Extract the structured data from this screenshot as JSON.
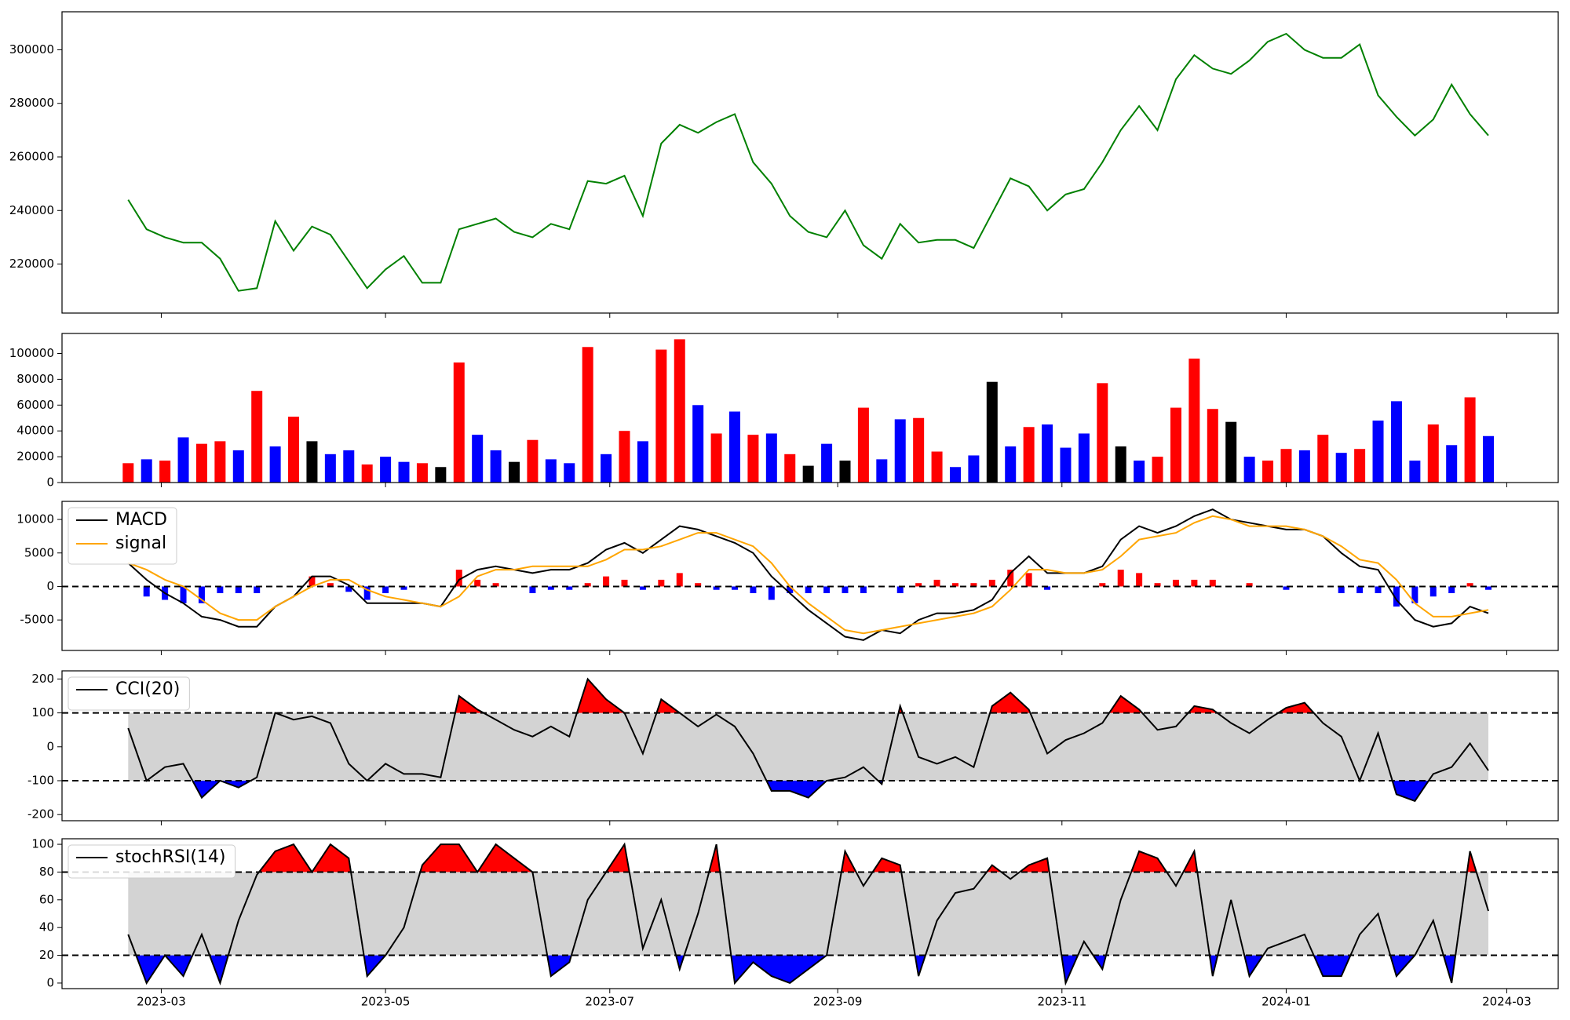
{
  "chart_data": {
    "type": "panels",
    "x": [
      "2023-02-20",
      "2023-02-25",
      "2023-03-02",
      "2023-03-07",
      "2023-03-12",
      "2023-03-17",
      "2023-03-22",
      "2023-03-27",
      "2023-04-01",
      "2023-04-06",
      "2023-04-11",
      "2023-04-16",
      "2023-04-21",
      "2023-04-26",
      "2023-05-01",
      "2023-05-06",
      "2023-05-11",
      "2023-05-16",
      "2023-05-21",
      "2023-05-26",
      "2023-05-31",
      "2023-06-05",
      "2023-06-10",
      "2023-06-15",
      "2023-06-20",
      "2023-06-25",
      "2023-06-30",
      "2023-07-05",
      "2023-07-10",
      "2023-07-15",
      "2023-07-20",
      "2023-07-25",
      "2023-07-30",
      "2023-08-04",
      "2023-08-09",
      "2023-08-14",
      "2023-08-19",
      "2023-08-24",
      "2023-08-29",
      "2023-09-03",
      "2023-09-08",
      "2023-09-13",
      "2023-09-18",
      "2023-09-23",
      "2023-09-28",
      "2023-10-03",
      "2023-10-08",
      "2023-10-13",
      "2023-10-18",
      "2023-10-23",
      "2023-10-28",
      "2023-11-02",
      "2023-11-07",
      "2023-11-12",
      "2023-11-17",
      "2023-11-22",
      "2023-11-27",
      "2023-12-02",
      "2023-12-07",
      "2023-12-12",
      "2023-12-17",
      "2023-12-22",
      "2023-12-27",
      "2024-01-01",
      "2024-01-06",
      "2024-01-11",
      "2024-01-16",
      "2024-01-21",
      "2024-01-26",
      "2024-01-31",
      "2024-02-05",
      "2024-02-10",
      "2024-02-15",
      "2024-02-20",
      "2024-02-25"
    ],
    "xlim": [
      "2023-02-02",
      "2024-03-15"
    ],
    "xticks": [
      {
        "value": "2023-03-01",
        "label": "2023-03"
      },
      {
        "value": "2023-05-01",
        "label": "2023-05"
      },
      {
        "value": "2023-07-01",
        "label": "2023-07"
      },
      {
        "value": "2023-09-01",
        "label": "2023-09"
      },
      {
        "value": "2023-11-01",
        "label": "2023-11"
      },
      {
        "value": "2024-01-01",
        "label": "2024-01"
      },
      {
        "value": "2024-03-01",
        "label": "2024-03"
      }
    ],
    "panels": [
      {
        "type": "line",
        "ylim": [
          201700,
          314200
        ],
        "yticks": [
          220000,
          240000,
          260000,
          280000,
          300000
        ],
        "series": [
          {
            "color": "green",
            "values": [
              244000,
              233000,
              230000,
              228000,
              228000,
              222000,
              210000,
              211000,
              236000,
              225000,
              234000,
              231000,
              221000,
              211000,
              218000,
              223000,
              213000,
              213000,
              233000,
              235000,
              237000,
              232000,
              230000,
              235000,
              233000,
              251000,
              250000,
              253000,
              238000,
              265000,
              272000,
              269000,
              273000,
              276000,
              258000,
              250000,
              238000,
              232000,
              230000,
              240000,
              227000,
              222000,
              235000,
              228000,
              229000,
              229000,
              226000,
              239000,
              252000,
              249000,
              240000,
              246000,
              248000,
              258000,
              270000,
              279000,
              270000,
              289000,
              298000,
              293000,
              291000,
              296000,
              303000,
              306000,
              300000,
              297000,
              297000,
              302000,
              283000,
              275000,
              268000,
              274000,
              287000,
              276000,
              268000
            ]
          }
        ]
      },
      {
        "type": "bar",
        "ylim": [
          0,
          115500
        ],
        "yticks": [
          0,
          20000,
          40000,
          60000,
          80000,
          100000
        ],
        "values": [
          15000,
          18000,
          17000,
          35000,
          30000,
          32000,
          25000,
          71000,
          28000,
          51000,
          32000,
          22000,
          25000,
          14000,
          20000,
          16000,
          15000,
          12000,
          93000,
          37000,
          25000,
          16000,
          33000,
          18000,
          15000,
          105000,
          22000,
          40000,
          32000,
          103000,
          111000,
          60000,
          38000,
          55000,
          37000,
          38000,
          22000,
          13000,
          30000,
          17000,
          58000,
          18000,
          49000,
          50000,
          24000,
          12000,
          21000,
          78000,
          28000,
          43000,
          45000,
          27000,
          38000,
          77000,
          28000,
          17000,
          20000,
          58000,
          96000,
          57000,
          47000,
          20000,
          17000,
          26000,
          25000,
          37000,
          23000,
          26000,
          48000,
          63000,
          17000,
          45000,
          29000,
          66000,
          36000
        ],
        "colors": [
          "red",
          "blue",
          "red",
          "blue",
          "red",
          "red",
          "blue",
          "red",
          "blue",
          "red",
          "black",
          "blue",
          "blue",
          "red",
          "blue",
          "blue",
          "red",
          "black",
          "red",
          "blue",
          "blue",
          "black",
          "red",
          "blue",
          "blue",
          "red",
          "blue",
          "red",
          "blue",
          "red",
          "red",
          "blue",
          "red",
          "blue",
          "red",
          "blue",
          "red",
          "black",
          "blue",
          "black",
          "red",
          "blue",
          "blue",
          "red",
          "red",
          "blue",
          "blue",
          "black",
          "blue",
          "red",
          "blue",
          "blue",
          "blue",
          "red",
          "black",
          "blue",
          "red",
          "red",
          "red",
          "red",
          "black",
          "blue",
          "red",
          "red",
          "blue",
          "red",
          "blue",
          "red",
          "blue",
          "blue",
          "blue",
          "red",
          "blue",
          "red",
          "blue"
        ]
      },
      {
        "type": "line",
        "ylim": [
          -9550,
          12700
        ],
        "yticks": [
          -5000,
          0,
          5000,
          10000
        ],
        "legend": "upper left",
        "thresholds": [
          0
        ],
        "histogram": {
          "up_color": "red",
          "down_color": "blue",
          "values": [
            0,
            -1500,
            -2000,
            -2500,
            -2500,
            -1000,
            -1000,
            -1000,
            0,
            0,
            1500,
            500,
            -800,
            -2000,
            -1000,
            -500,
            0,
            0,
            2500,
            1000,
            500,
            0,
            -1000,
            -500,
            -500,
            500,
            1500,
            1000,
            -500,
            1000,
            2000,
            500,
            -500,
            -500,
            -1000,
            -2000,
            -1000,
            -1000,
            -1000,
            -1000,
            -1000,
            0,
            -1000,
            500,
            1000,
            500,
            500,
            1000,
            2500,
            2000,
            -500,
            0,
            0,
            500,
            2500,
            2000,
            500,
            1000,
            1000,
            1000,
            0,
            500,
            0,
            -500,
            0,
            0,
            -1000,
            -1000,
            -1000,
            -3000,
            -2500,
            -1500,
            -1000,
            500,
            -500
          ]
        },
        "series": [
          {
            "name": "MACD",
            "color": "black",
            "values": [
              3500,
              1000,
              -1000,
              -2500,
              -4500,
              -5000,
              -6000,
              -6000,
              -3000,
              -1500,
              1500,
              1500,
              200,
              -2500,
              -2500,
              -2500,
              -2500,
              -3000,
              1000,
              2500,
              3000,
              2500,
              2000,
              2500,
              2500,
              3500,
              5500,
              6500,
              5000,
              7000,
              9000,
              8500,
              7500,
              6500,
              5000,
              1500,
              -1000,
              -3500,
              -5500,
              -7500,
              -8000,
              -6500,
              -7000,
              -5000,
              -4000,
              -4000,
              -3500,
              -2000,
              2000,
              4500,
              2000,
              2000,
              2000,
              3000,
              7000,
              9000,
              8000,
              9000,
              10500,
              11500,
              10000,
              9500,
              9000,
              8500,
              8500,
              7500,
              5000,
              3000,
              2500,
              -2000,
              -5000,
              -6000,
              -5500,
              -3000,
              -4000
            ]
          },
          {
            "name": "signal",
            "color": "orange",
            "values": [
              3500,
              2500,
              1000,
              0,
              -2000,
              -4000,
              -5000,
              -5000,
              -3000,
              -1500,
              0,
              1000,
              1000,
              -500,
              -1500,
              -2000,
              -2500,
              -3000,
              -1500,
              1500,
              2500,
              2500,
              3000,
              3000,
              3000,
              3000,
              4000,
              5500,
              5500,
              6000,
              7000,
              8000,
              8000,
              7000,
              6000,
              3500,
              0,
              -2500,
              -4500,
              -6500,
              -7000,
              -6500,
              -6000,
              -5500,
              -5000,
              -4500,
              -4000,
              -3000,
              -500,
              2500,
              2500,
              2000,
              2000,
              2500,
              4500,
              7000,
              7500,
              8000,
              9500,
              10500,
              10000,
              9000,
              9000,
              9000,
              8500,
              7500,
              6000,
              4000,
              3500,
              1000,
              -2500,
              -4500,
              -4500,
              -4000,
              -3500
            ]
          }
        ]
      },
      {
        "type": "line",
        "ylim": [
          -218,
          224
        ],
        "yticks": [
          -200,
          -100,
          0,
          100,
          200
        ],
        "legend": "upper left",
        "thresholds": [
          -100,
          100
        ],
        "band_color": "lightgray",
        "fill_above": "red",
        "fill_below": "blue",
        "series": [
          {
            "name": "CCI(20)",
            "color": "black",
            "values": [
              55,
              -100,
              -60,
              -50,
              -150,
              -100,
              -120,
              -90,
              100,
              80,
              90,
              70,
              -50,
              -100,
              -50,
              -80,
              -80,
              -90,
              150,
              110,
              80,
              50,
              30,
              60,
              30,
              200,
              140,
              100,
              -20,
              140,
              100,
              60,
              95,
              60,
              -20,
              -130,
              -130,
              -150,
              -100,
              -90,
              -60,
              -110,
              120,
              -30,
              -50,
              -30,
              -60,
              120,
              160,
              110,
              -20,
              20,
              40,
              70,
              150,
              110,
              50,
              60,
              120,
              110,
              70,
              40,
              80,
              115,
              130,
              70,
              30,
              -100,
              40,
              -140,
              -160,
              -80,
              -60,
              10,
              -70
            ]
          }
        ]
      },
      {
        "type": "line",
        "ylim": [
          -4,
          104
        ],
        "yticks": [
          0,
          20,
          40,
          60,
          80,
          100
        ],
        "legend": "upper left",
        "thresholds": [
          20,
          80
        ],
        "band_color": "lightgray",
        "fill_above": "red",
        "fill_below": "blue",
        "series": [
          {
            "name": "stochRSI(14)",
            "color": "black",
            "values": [
              35,
              0,
              20,
              5,
              35,
              0,
              45,
              78,
              95,
              100,
              80,
              100,
              90,
              5,
              20,
              40,
              85,
              100,
              100,
              80,
              100,
              90,
              80,
              5,
              15,
              60,
              80,
              100,
              25,
              60,
              10,
              50,
              100,
              0,
              15,
              5,
              0,
              10,
              20,
              95,
              70,
              90,
              85,
              5,
              45,
              65,
              68,
              85,
              75,
              85,
              90,
              0,
              30,
              10,
              60,
              95,
              90,
              70,
              95,
              5,
              60,
              5,
              25,
              30,
              35,
              5,
              5,
              35,
              50,
              5,
              20,
              45,
              0,
              95,
              52
            ]
          }
        ]
      }
    ]
  }
}
